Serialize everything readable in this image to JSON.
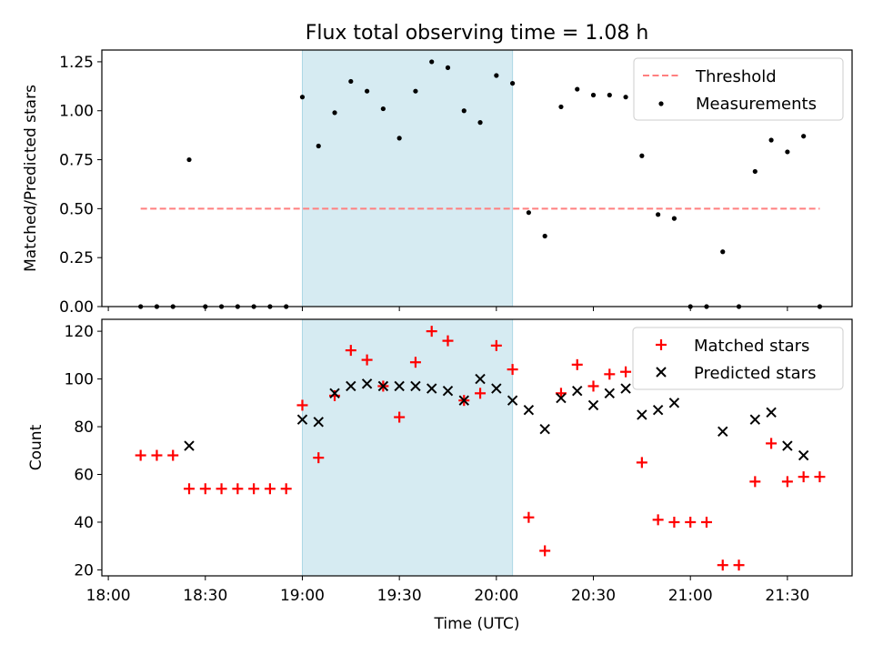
{
  "figure": {
    "title": "Flux total observing time = 1.08 h"
  },
  "chart_data": [
    {
      "type": "scatter",
      "panel": "top",
      "title": "Flux total observing time = 1.08 h",
      "xlabel": "",
      "ylabel": "Matched/Predicted stars",
      "xlim": [
        "17:58",
        "21:50"
      ],
      "ylim": [
        0,
        1.31
      ],
      "yticks": [
        0.0,
        0.25,
        0.5,
        0.75,
        1.0,
        1.25
      ],
      "ytick_labels": [
        "0.00",
        "0.25",
        "0.50",
        "0.75",
        "1.00",
        "1.25"
      ],
      "shaded_span": {
        "start": "19:00",
        "end": "20:05",
        "color": "#add8e6"
      },
      "legend": {
        "placement": "top-right",
        "entries": [
          "Threshold",
          "Measurements"
        ]
      },
      "series": [
        {
          "name": "Threshold",
          "kind": "line",
          "style": "dashed",
          "color": "#ff7f7f",
          "x": [
            "18:10",
            "21:40"
          ],
          "y": [
            0.5,
            0.5
          ]
        },
        {
          "name": "Measurements",
          "kind": "points",
          "color": "#000000",
          "x": [
            "18:10",
            "18:15",
            "18:20",
            "18:25",
            "18:30",
            "18:35",
            "18:40",
            "18:45",
            "18:50",
            "18:55",
            "19:00",
            "19:05",
            "19:10",
            "19:15",
            "19:20",
            "19:25",
            "19:30",
            "19:35",
            "19:40",
            "19:45",
            "19:50",
            "19:55",
            "20:00",
            "20:05",
            "20:10",
            "20:15",
            "20:20",
            "20:25",
            "20:30",
            "20:35",
            "20:40",
            "20:45",
            "20:50",
            "20:55",
            "21:00",
            "21:05",
            "21:10",
            "21:15",
            "21:20",
            "21:25",
            "21:30",
            "21:35",
            "21:40"
          ],
          "y": [
            0,
            0,
            0,
            0.75,
            0,
            0,
            0,
            0,
            0,
            0,
            1.07,
            0.82,
            0.99,
            1.15,
            1.1,
            1.01,
            0.86,
            1.1,
            1.25,
            1.22,
            1.0,
            0.94,
            1.18,
            1.14,
            0.48,
            0.36,
            1.02,
            1.11,
            1.08,
            1.08,
            1.07,
            0.77,
            0.47,
            0.45,
            0,
            0,
            0.28,
            0,
            0.69,
            0.85,
            0.79,
            0.87,
            0
          ]
        }
      ]
    },
    {
      "type": "scatter",
      "panel": "bottom",
      "title": "",
      "xlabel": "Time (UTC)",
      "ylabel": "Count",
      "xlim": [
        "17:58",
        "21:50"
      ],
      "xticks": [
        "18:00",
        "18:30",
        "19:00",
        "19:30",
        "20:00",
        "20:30",
        "21:00",
        "21:30"
      ],
      "ylim": [
        17.5,
        125
      ],
      "yticks": [
        20,
        40,
        60,
        80,
        100,
        120
      ],
      "ytick_labels": [
        "20",
        "40",
        "60",
        "80",
        "100",
        "120"
      ],
      "shaded_span": {
        "start": "19:00",
        "end": "20:05",
        "color": "#add8e6"
      },
      "legend": {
        "placement": "top-right",
        "entries": [
          "Matched stars",
          "Predicted stars"
        ]
      },
      "series": [
        {
          "name": "Matched stars",
          "marker": "plus",
          "color": "#ff0000",
          "x": [
            "18:10",
            "18:15",
            "18:20",
            "18:25",
            "18:30",
            "18:35",
            "18:40",
            "18:45",
            "18:50",
            "18:55",
            "19:00",
            "19:05",
            "19:10",
            "19:15",
            "19:20",
            "19:25",
            "19:30",
            "19:35",
            "19:40",
            "19:45",
            "19:50",
            "19:55",
            "20:00",
            "20:05",
            "20:10",
            "20:15",
            "20:20",
            "20:25",
            "20:30",
            "20:35",
            "20:40",
            "20:45",
            "20:50",
            "20:55",
            "21:00",
            "21:05",
            "21:10",
            "21:15",
            "21:20",
            "21:25",
            "21:30",
            "21:35",
            "21:40"
          ],
          "y": [
            68,
            68,
            68,
            54,
            54,
            54,
            54,
            54,
            54,
            54,
            89,
            67,
            93,
            112,
            108,
            97,
            84,
            107,
            120,
            116,
            91,
            94,
            114,
            104,
            42,
            28,
            94,
            106,
            97,
            102,
            103,
            65,
            41,
            40,
            40,
            40,
            22,
            22,
            57,
            73,
            57,
            59,
            59
          ]
        },
        {
          "name": "Predicted stars",
          "marker": "x",
          "color": "#000000",
          "x": [
            "18:25",
            "19:00",
            "19:05",
            "19:10",
            "19:15",
            "19:20",
            "19:25",
            "19:30",
            "19:35",
            "19:40",
            "19:45",
            "19:50",
            "19:55",
            "20:00",
            "20:05",
            "20:10",
            "20:15",
            "20:20",
            "20:25",
            "20:30",
            "20:35",
            "20:40",
            "20:45",
            "20:50",
            "20:55",
            "21:10",
            "21:20",
            "21:25",
            "21:30",
            "21:35"
          ],
          "y": [
            72,
            83,
            82,
            94,
            97,
            98,
            97,
            97,
            97,
            96,
            95,
            91,
            100,
            96,
            91,
            87,
            79,
            92,
            95,
            89,
            94,
            96,
            85,
            87,
            90,
            78,
            83,
            86,
            72,
            68
          ]
        }
      ]
    }
  ]
}
